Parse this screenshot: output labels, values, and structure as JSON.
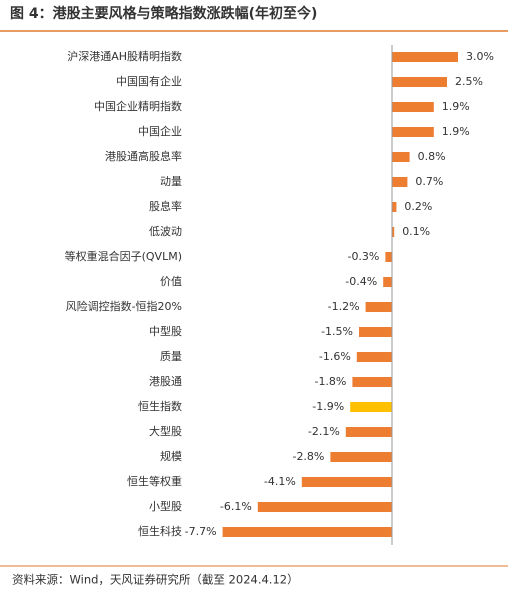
{
  "chart_data": {
    "type": "hbar",
    "title": "图 4：港股主要风格与策略指数涨跌幅(年初至今)",
    "source": "资料来源：Wind，天风证券研究所（截至 2024.4.12）",
    "categories": [
      "沪深港通AH股精明指数",
      "中国国有企业",
      "中国企业精明指数",
      "中国企业",
      "港股通高股息率",
      "动量",
      "股息率",
      "低波动",
      "等权重混合因子(QVLM)",
      "价值",
      "风险调控指数-恒指20%",
      "中型股",
      "质量",
      "港股通",
      "恒生指数",
      "大型股",
      "规模",
      "恒生等权重",
      "小型股",
      "恒生科技"
    ],
    "values": [
      3.0,
      2.5,
      1.9,
      1.9,
      0.8,
      0.7,
      0.2,
      0.1,
      -0.3,
      -0.4,
      -1.2,
      -1.5,
      -1.6,
      -1.8,
      -1.9,
      -2.1,
      -2.8,
      -4.1,
      -6.1,
      -7.7
    ],
    "value_labels": [
      "3.0%",
      "2.5%",
      "1.9%",
      "1.9%",
      "0.8%",
      "0.7%",
      "0.2%",
      "0.1%",
      "-0.3%",
      "-0.4%",
      "-1.2%",
      "-1.5%",
      "-1.6%",
      "-1.8%",
      "-1.9%",
      "-2.1%",
      "-2.8%",
      "-4.1%",
      "-6.1%",
      "-7.7%"
    ],
    "colors": [
      "#ED7D31",
      "#ED7D31",
      "#ED7D31",
      "#ED7D31",
      "#ED7D31",
      "#ED7D31",
      "#ED7D31",
      "#ED7D31",
      "#ED7D31",
      "#ED7D31",
      "#ED7D31",
      "#ED7D31",
      "#ED7D31",
      "#ED7D31",
      "#FFC000",
      "#ED7D31",
      "#ED7D31",
      "#ED7D31",
      "#ED7D31",
      "#ED7D31"
    ],
    "xlim": [
      -8.5,
      4.5
    ]
  }
}
